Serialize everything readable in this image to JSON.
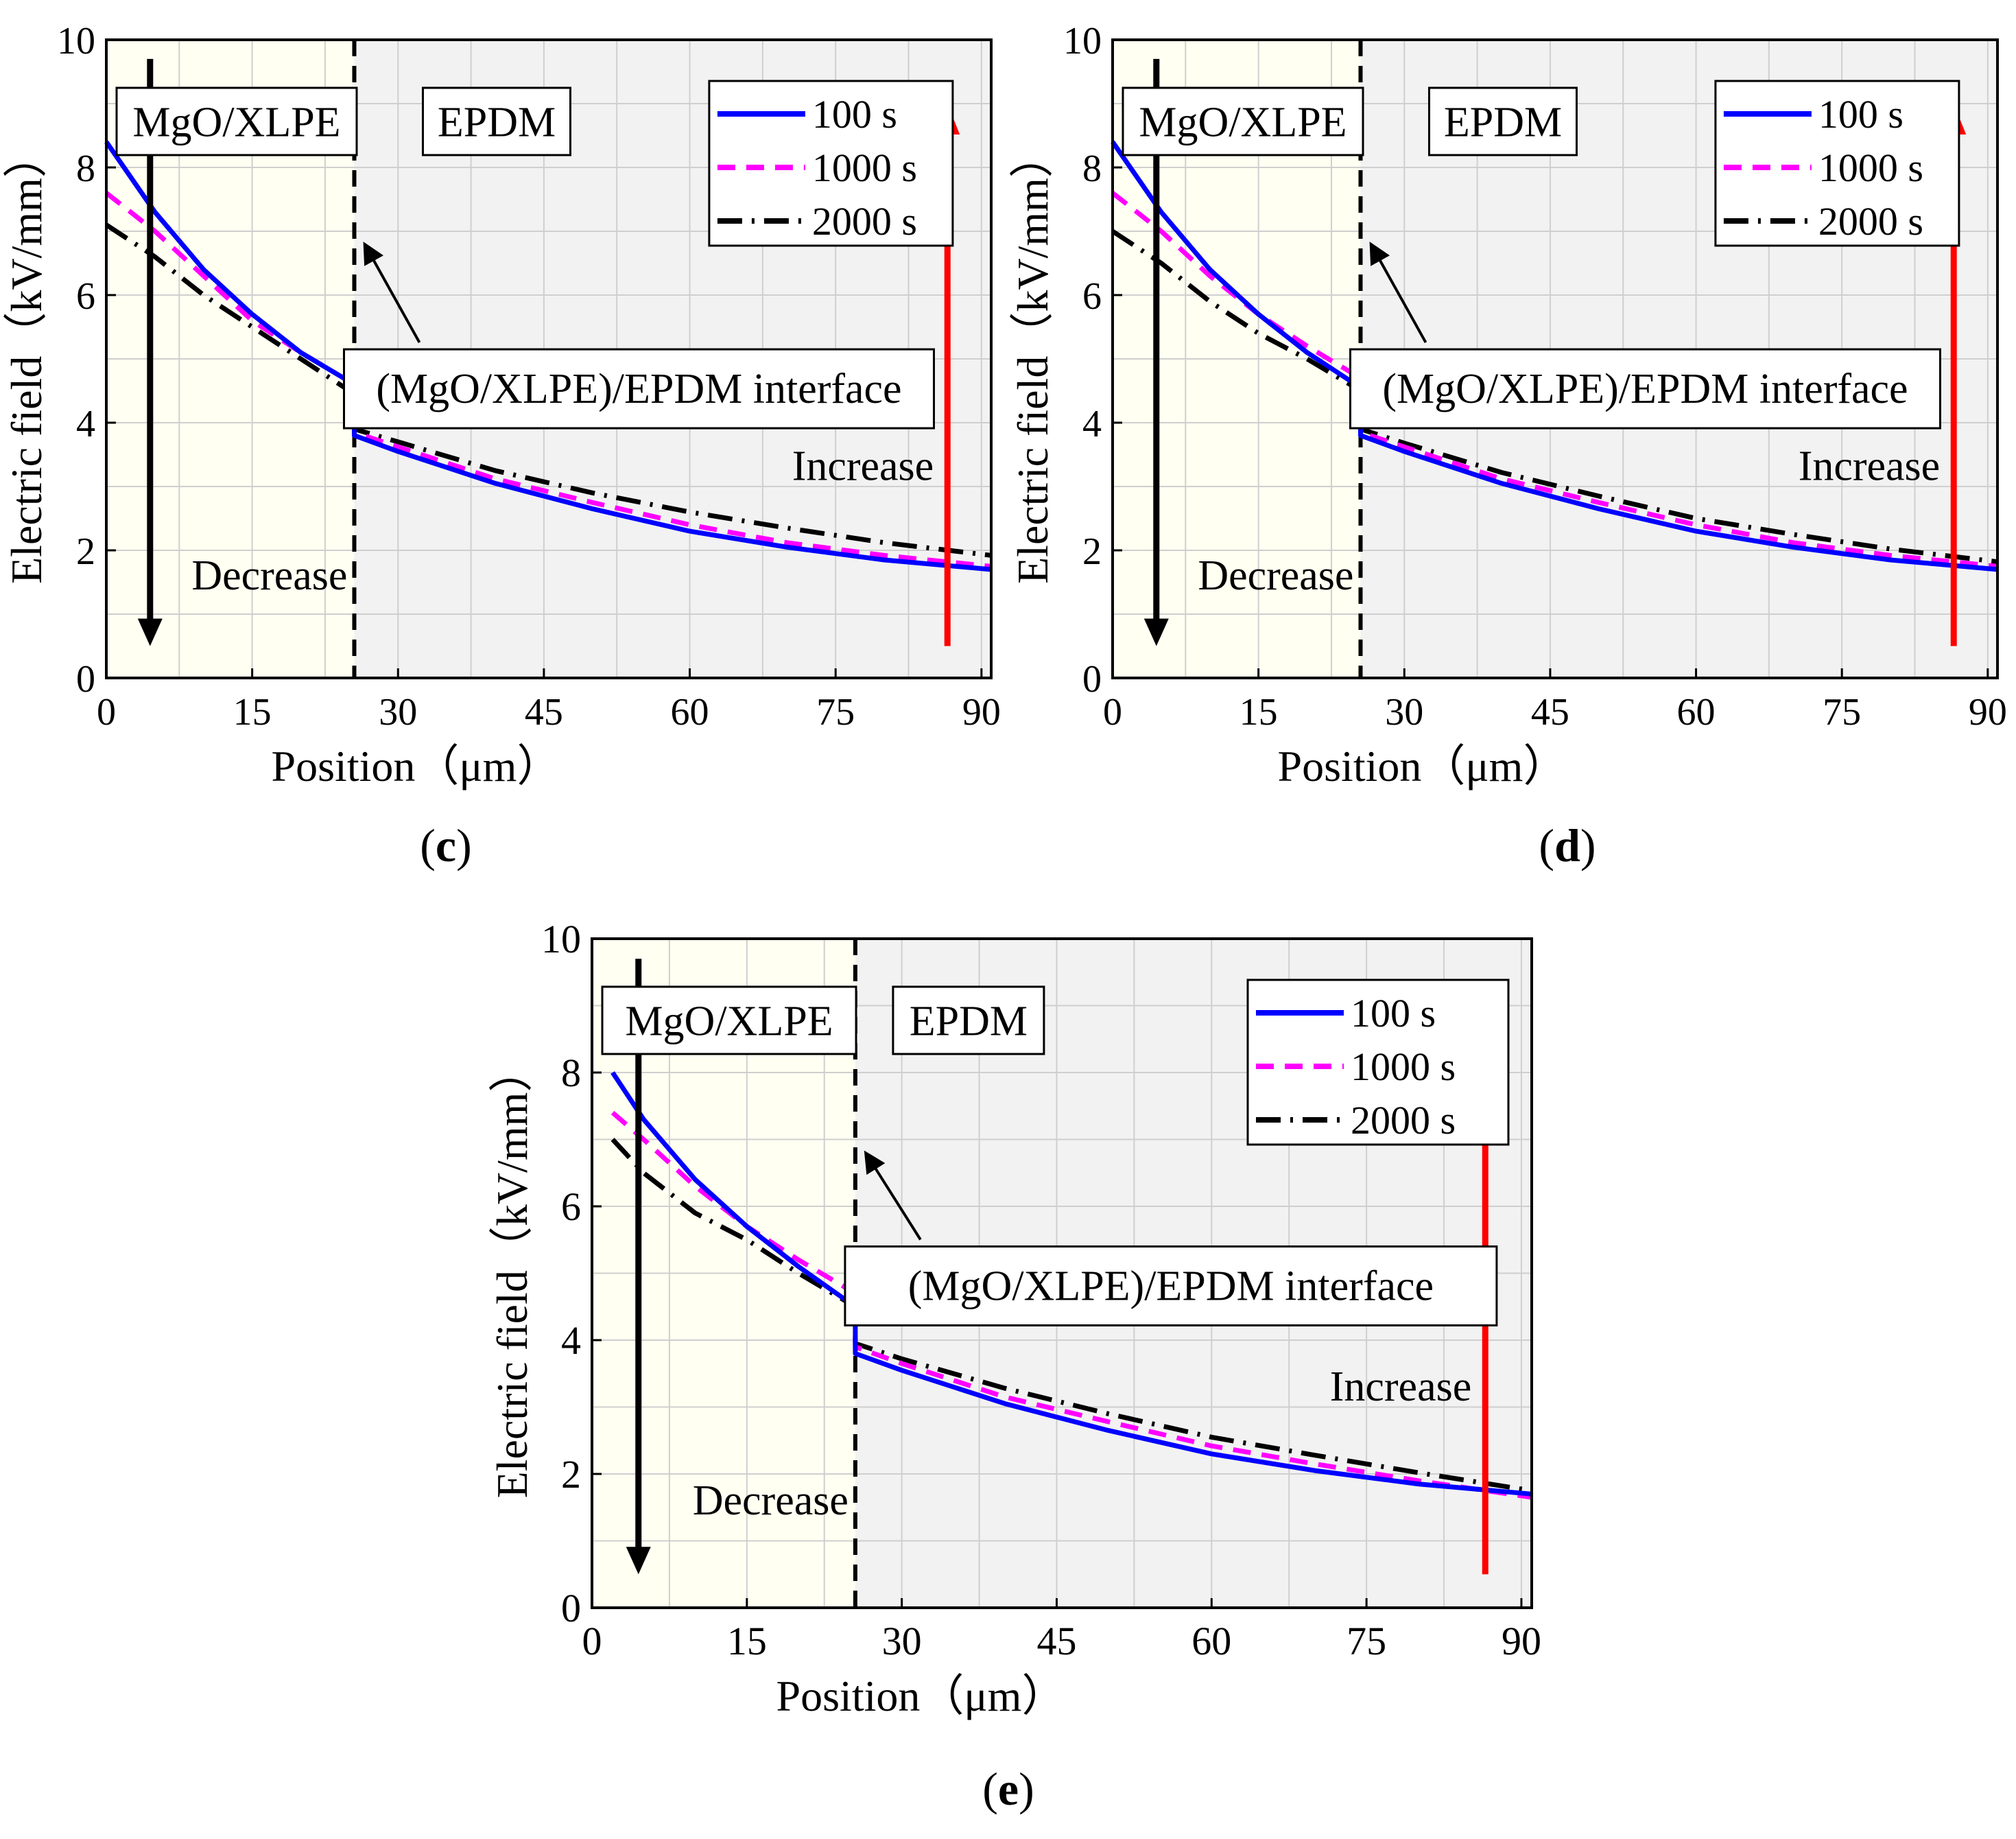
{
  "figure": {
    "panels": [
      "c",
      "d",
      "e"
    ]
  },
  "colors": {
    "series_100": "#0000ff",
    "series_1000": "#ff00ff",
    "series_2000": "#000000",
    "region_left": "#fffff2",
    "region_right": "#f2f2f2",
    "decrease_arrow": "#000000",
    "increase_arrow": "#ff0000",
    "grid": "#cfcfcf"
  },
  "chart_data": [
    {
      "panel": "c",
      "type": "line",
      "xlabel": "Position（μm）",
      "ylabel": "Electric field（kV/mm）",
      "xlim": [
        0,
        91
      ],
      "ylim": [
        0,
        10
      ],
      "xticks": [
        "0",
        "15",
        "30",
        "45",
        "60",
        "75",
        "90"
      ],
      "yticks": [
        "0",
        "2",
        "4",
        "6",
        "8",
        "10"
      ],
      "xtick_values": [
        0,
        15,
        30,
        45,
        60,
        75,
        90
      ],
      "ytick_values": [
        0,
        2,
        4,
        6,
        8,
        10
      ],
      "interface_x": 25.5,
      "region_labels": {
        "left": "MgO/XLPE",
        "right": "EPDM"
      },
      "interface_label": "(MgO/XLPE)/EPDM interface",
      "decrease_label": "Decrease",
      "increase_label": "Increase",
      "legend": [
        "100 s",
        "1000 s",
        "2000 s"
      ],
      "series": [
        {
          "name": "100 s",
          "x": [
            0,
            5,
            10,
            15,
            20,
            25.5,
            25.5,
            30,
            40,
            50,
            60,
            70,
            80,
            91
          ],
          "y": [
            8.4,
            7.3,
            6.4,
            5.7,
            5.1,
            4.6,
            3.8,
            3.55,
            3.05,
            2.65,
            2.3,
            2.05,
            1.85,
            1.7
          ]
        },
        {
          "name": "1000 s",
          "x": [
            0,
            5,
            10,
            15,
            20,
            25.5,
            25.5,
            30,
            40,
            50,
            60,
            70,
            80,
            91
          ],
          "y": [
            7.6,
            7.0,
            6.3,
            5.6,
            5.1,
            4.6,
            3.85,
            3.62,
            3.12,
            2.75,
            2.4,
            2.12,
            1.92,
            1.75
          ]
        },
        {
          "name": "2000 s",
          "x": [
            0,
            5,
            10,
            15,
            20,
            25.5,
            25.5,
            30,
            40,
            50,
            60,
            70,
            80,
            91
          ],
          "y": [
            7.1,
            6.6,
            6.0,
            5.5,
            5.0,
            4.45,
            3.9,
            3.7,
            3.25,
            2.9,
            2.6,
            2.35,
            2.12,
            1.92
          ]
        }
      ]
    },
    {
      "panel": "d",
      "type": "line",
      "xlabel": "Position（μm）",
      "ylabel": "Electric field（kV/mm）",
      "xlim": [
        0,
        91
      ],
      "ylim": [
        0,
        10
      ],
      "xticks": [
        "0",
        "15",
        "30",
        "45",
        "60",
        "75",
        "90"
      ],
      "yticks": [
        "0",
        "2",
        "4",
        "6",
        "8",
        "10"
      ],
      "xtick_values": [
        0,
        15,
        30,
        45,
        60,
        75,
        90
      ],
      "ytick_values": [
        0,
        2,
        4,
        6,
        8,
        10
      ],
      "interface_x": 25.5,
      "region_labels": {
        "left": "MgO/XLPE",
        "right": "EPDM"
      },
      "interface_label": "(MgO/XLPE)/EPDM interface",
      "decrease_label": "Decrease",
      "increase_label": "Increase",
      "legend": [
        "100 s",
        "1000 s",
        "2000 s"
      ],
      "series": [
        {
          "name": "100 s",
          "x": [
            0,
            5,
            10,
            15,
            20,
            25.5,
            25.5,
            30,
            40,
            50,
            60,
            70,
            80,
            91
          ],
          "y": [
            8.4,
            7.3,
            6.4,
            5.7,
            5.1,
            4.55,
            3.8,
            3.55,
            3.05,
            2.65,
            2.3,
            2.05,
            1.85,
            1.7
          ]
        },
        {
          "name": "1000 s",
          "x": [
            0,
            5,
            10,
            15,
            20,
            25.5,
            25.5,
            30,
            40,
            50,
            60,
            70,
            80,
            91
          ],
          "y": [
            7.6,
            7.0,
            6.3,
            5.7,
            5.2,
            4.7,
            3.85,
            3.62,
            3.12,
            2.75,
            2.4,
            2.12,
            1.92,
            1.75
          ]
        },
        {
          "name": "2000 s",
          "x": [
            0,
            5,
            10,
            15,
            20,
            25.5,
            25.5,
            30,
            40,
            50,
            60,
            70,
            80,
            91
          ],
          "y": [
            7.0,
            6.5,
            5.9,
            5.4,
            5.0,
            4.5,
            3.9,
            3.68,
            3.22,
            2.85,
            2.5,
            2.25,
            2.02,
            1.82
          ]
        }
      ]
    },
    {
      "panel": "e",
      "type": "line",
      "xlabel": "Position（μm）",
      "ylabel": "Electric field（kV/mm）",
      "xlim": [
        0,
        91
      ],
      "ylim": [
        0,
        10
      ],
      "xticks": [
        "0",
        "15",
        "30",
        "45",
        "60",
        "75",
        "90"
      ],
      "yticks": [
        "0",
        "2",
        "4",
        "6",
        "8",
        "10"
      ],
      "xtick_values": [
        0,
        15,
        30,
        45,
        60,
        75,
        90
      ],
      "ytick_values": [
        0,
        2,
        4,
        6,
        8,
        10
      ],
      "interface_x": 25.5,
      "region_labels": {
        "left": "MgO/XLPE",
        "right": "EPDM"
      },
      "interface_label": "(MgO/XLPE)/EPDM  interface",
      "decrease_label": "Decrease",
      "increase_label": "Increase",
      "legend": [
        "100 s",
        "1000 s",
        "2000 s"
      ],
      "series": [
        {
          "name": "100 s",
          "x": [
            2,
            5,
            10,
            15,
            20,
            25.5,
            25.5,
            30,
            40,
            50,
            60,
            70,
            80,
            91
          ],
          "y": [
            8.0,
            7.3,
            6.4,
            5.7,
            5.1,
            4.5,
            3.8,
            3.55,
            3.05,
            2.65,
            2.3,
            2.05,
            1.85,
            1.7
          ]
        },
        {
          "name": "1000 s",
          "x": [
            2,
            5,
            10,
            15,
            20,
            25.5,
            25.5,
            30,
            40,
            50,
            60,
            70,
            80,
            91
          ],
          "y": [
            7.4,
            7.0,
            6.3,
            5.7,
            5.2,
            4.7,
            3.9,
            3.65,
            3.15,
            2.78,
            2.42,
            2.15,
            1.9,
            1.65
          ]
        },
        {
          "name": "2000 s",
          "x": [
            2,
            5,
            10,
            15,
            20,
            25.5,
            25.5,
            30,
            40,
            50,
            60,
            70,
            80,
            91
          ],
          "y": [
            7.0,
            6.5,
            5.9,
            5.5,
            5.0,
            4.5,
            3.95,
            3.72,
            3.28,
            2.9,
            2.55,
            2.28,
            2.02,
            1.75
          ]
        }
      ]
    }
  ]
}
